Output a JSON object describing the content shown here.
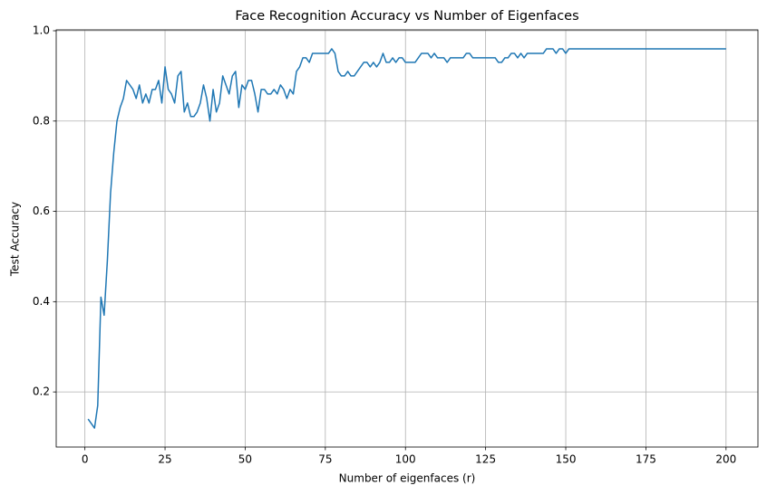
{
  "chart_data": {
    "type": "line",
    "title": "Face Recognition Accuracy vs Number of Eigenfaces",
    "xlabel": "Number of eigenfaces (r)",
    "ylabel": "Test Accuracy",
    "color": "#1f77b4",
    "grid": true,
    "x": [
      1,
      2,
      3,
      4,
      5,
      6,
      7,
      8,
      9,
      10,
      11,
      12,
      13,
      14,
      15,
      16,
      17,
      18,
      19,
      20,
      21,
      22,
      23,
      24,
      25,
      26,
      27,
      28,
      29,
      30,
      31,
      32,
      33,
      34,
      35,
      36,
      37,
      38,
      39,
      40,
      41,
      42,
      43,
      44,
      45,
      46,
      47,
      48,
      49,
      50,
      51,
      52,
      53,
      54,
      55,
      56,
      57,
      58,
      59,
      60,
      61,
      62,
      63,
      64,
      65,
      66,
      67,
      68,
      69,
      70,
      71,
      72,
      73,
      74,
      75,
      76,
      77,
      78,
      79,
      80,
      81,
      82,
      83,
      84,
      85,
      86,
      87,
      88,
      89,
      90,
      91,
      92,
      93,
      94,
      95,
      96,
      97,
      98,
      99,
      100,
      101,
      102,
      103,
      104,
      105,
      106,
      107,
      108,
      109,
      110,
      111,
      112,
      113,
      114,
      115,
      116,
      117,
      118,
      119,
      120,
      121,
      122,
      123,
      124,
      125,
      126,
      127,
      128,
      129,
      130,
      131,
      132,
      133,
      134,
      135,
      136,
      137,
      138,
      139,
      140,
      141,
      142,
      143,
      144,
      145,
      146,
      147,
      148,
      149,
      150,
      151,
      152,
      153,
      154,
      155,
      156,
      157,
      158,
      159,
      160,
      161,
      162,
      163,
      164,
      165,
      166,
      167,
      168,
      169,
      170,
      171,
      172,
      173,
      174,
      175,
      176,
      177,
      178,
      179,
      180,
      181,
      182,
      183,
      184,
      185,
      186,
      187,
      188,
      189,
      190,
      191,
      192,
      193,
      194,
      195,
      196,
      197,
      198,
      199,
      200
    ],
    "values": [
      0.14,
      0.13,
      0.12,
      0.17,
      0.41,
      0.37,
      0.49,
      0.64,
      0.73,
      0.8,
      0.83,
      0.85,
      0.89,
      0.88,
      0.87,
      0.85,
      0.88,
      0.84,
      0.86,
      0.84,
      0.87,
      0.87,
      0.89,
      0.84,
      0.92,
      0.87,
      0.86,
      0.84,
      0.9,
      0.91,
      0.82,
      0.84,
      0.81,
      0.81,
      0.82,
      0.84,
      0.88,
      0.85,
      0.8,
      0.87,
      0.82,
      0.84,
      0.9,
      0.88,
      0.86,
      0.9,
      0.91,
      0.83,
      0.88,
      0.87,
      0.89,
      0.89,
      0.86,
      0.82,
      0.87,
      0.87,
      0.86,
      0.86,
      0.87,
      0.86,
      0.88,
      0.87,
      0.85,
      0.87,
      0.86,
      0.91,
      0.92,
      0.94,
      0.94,
      0.93,
      0.95,
      0.95,
      0.95,
      0.95,
      0.95,
      0.95,
      0.96,
      0.95,
      0.91,
      0.9,
      0.9,
      0.91,
      0.9,
      0.9,
      0.91,
      0.92,
      0.93,
      0.93,
      0.92,
      0.93,
      0.92,
      0.93,
      0.95,
      0.93,
      0.93,
      0.94,
      0.93,
      0.94,
      0.94,
      0.93,
      0.93,
      0.93,
      0.93,
      0.94,
      0.95,
      0.95,
      0.95,
      0.94,
      0.95,
      0.94,
      0.94,
      0.94,
      0.93,
      0.94,
      0.94,
      0.94,
      0.94,
      0.94,
      0.95,
      0.95,
      0.94,
      0.94,
      0.94,
      0.94,
      0.94,
      0.94,
      0.94,
      0.94,
      0.93,
      0.93,
      0.94,
      0.94,
      0.95,
      0.95,
      0.94,
      0.95,
      0.94,
      0.95,
      0.95,
      0.95,
      0.95,
      0.95,
      0.95,
      0.96,
      0.96,
      0.96,
      0.95,
      0.96,
      0.96,
      0.95,
      0.96,
      0.96,
      0.96,
      0.96,
      0.96,
      0.96,
      0.96,
      0.96,
      0.96,
      0.96,
      0.96,
      0.96,
      0.96,
      0.96,
      0.96,
      0.96,
      0.96,
      0.96,
      0.96,
      0.96,
      0.96,
      0.96,
      0.96,
      0.96,
      0.96,
      0.96,
      0.96,
      0.96,
      0.96,
      0.96,
      0.96,
      0.96,
      0.96,
      0.96,
      0.96,
      0.96,
      0.96,
      0.96,
      0.96,
      0.96,
      0.96,
      0.96,
      0.96,
      0.96,
      0.96,
      0.96,
      0.96,
      0.96,
      0.96,
      0.96
    ],
    "xlim": [
      -8.95,
      209.95
    ],
    "xticks": [
      0,
      25,
      50,
      75,
      100,
      125,
      150,
      175,
      200
    ],
    "ylim": [
      0.078,
      1.002
    ],
    "yticks": [
      0.2,
      0.4,
      0.6,
      0.8,
      {
        "value": 1,
        "label": "1.0"
      }
    ]
  }
}
